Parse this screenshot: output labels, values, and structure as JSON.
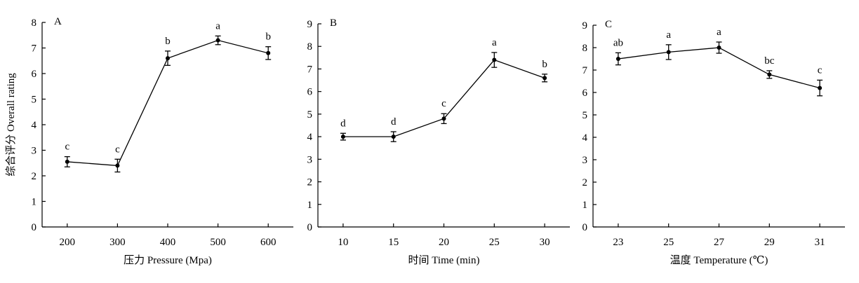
{
  "ylabel": "综合评分 Overall rating",
  "chart_data": [
    {
      "type": "line",
      "panel": "A",
      "xlabel": "压力 Pressure (Mpa)",
      "ylabel": "综合评分 Overall rating",
      "x": [
        200,
        300,
        400,
        500,
        600
      ],
      "x_ticks": [
        "200",
        "300",
        "400",
        "500",
        "600"
      ],
      "values": [
        2.55,
        2.4,
        6.6,
        7.3,
        6.8
      ],
      "errors": [
        0.2,
        0.25,
        0.28,
        0.17,
        0.25
      ],
      "letters": [
        "c",
        "c",
        "b",
        "a",
        "b"
      ],
      "ylim": [
        0,
        8
      ],
      "y_ticks": [
        0,
        1,
        2,
        3,
        4,
        5,
        6,
        7,
        8
      ],
      "xlim": [
        150,
        650
      ]
    },
    {
      "type": "line",
      "panel": "B",
      "xlabel": "时间 Time (min)",
      "x": [
        10,
        15,
        20,
        25,
        30
      ],
      "x_ticks": [
        "10",
        "15",
        "20",
        "25",
        "30"
      ],
      "values": [
        4.0,
        4.0,
        4.8,
        7.4,
        6.6
      ],
      "errors": [
        0.15,
        0.22,
        0.22,
        0.33,
        0.17
      ],
      "letters": [
        "d",
        "d",
        "c",
        "a",
        "b"
      ],
      "ylim": [
        0,
        9
      ],
      "y_ticks": [
        0,
        1,
        2,
        3,
        4,
        5,
        6,
        7,
        8,
        9
      ],
      "xlim": [
        7.5,
        32.5
      ]
    },
    {
      "type": "line",
      "panel": "C",
      "xlabel": "温度 Temperature (℃)",
      "x": [
        23,
        25,
        27,
        29,
        31
      ],
      "x_ticks": [
        "23",
        "25",
        "27",
        "29",
        "31"
      ],
      "values": [
        7.5,
        7.8,
        8.0,
        6.8,
        6.2
      ],
      "errors": [
        0.27,
        0.33,
        0.25,
        0.17,
        0.35
      ],
      "letters": [
        "ab",
        "a",
        "a",
        "bc",
        "c"
      ],
      "ylim": [
        0,
        9
      ],
      "y_ticks": [
        0,
        1,
        2,
        3,
        4,
        5,
        6,
        7,
        8,
        9
      ],
      "xlim": [
        22,
        32
      ]
    }
  ]
}
